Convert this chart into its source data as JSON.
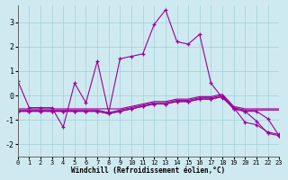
{
  "xlabel": "Windchill (Refroidissement éolien,°C)",
  "background_color": "#ceeaf0",
  "grid_color": "#a8d4dc",
  "line_color": "#990099",
  "xlim": [
    0,
    23
  ],
  "ylim": [
    -2.5,
    3.7
  ],
  "yticks": [
    -2,
    -1,
    0,
    1,
    2,
    3
  ],
  "xticks": [
    0,
    1,
    2,
    3,
    4,
    5,
    6,
    7,
    8,
    9,
    10,
    11,
    12,
    13,
    14,
    15,
    16,
    17,
    18,
    19,
    20,
    21,
    22,
    23
  ],
  "series": [
    [
      0.6,
      -0.5,
      -0.5,
      -0.5,
      -1.3,
      0.5,
      -0.3,
      1.4,
      -0.7,
      1.5,
      1.6,
      1.7,
      2.9,
      3.5,
      2.2,
      2.1,
      2.5,
      0.5,
      -0.1,
      -0.5,
      -1.1,
      -1.2,
      -1.5,
      -1.6
    ],
    [
      -0.55,
      -0.55,
      -0.55,
      -0.55,
      -0.55,
      -0.55,
      -0.55,
      -0.55,
      -0.55,
      -0.55,
      -0.45,
      -0.35,
      -0.25,
      -0.25,
      -0.15,
      -0.15,
      -0.05,
      -0.05,
      0.05,
      -0.45,
      -0.55,
      -0.55,
      -0.55,
      -0.55
    ],
    [
      -0.6,
      -0.6,
      -0.6,
      -0.6,
      -0.6,
      -0.6,
      -0.6,
      -0.6,
      -0.7,
      -0.6,
      -0.5,
      -0.4,
      -0.3,
      -0.3,
      -0.2,
      -0.2,
      -0.1,
      -0.1,
      0.0,
      -0.5,
      -0.6,
      -0.6,
      -0.6,
      -0.6
    ],
    [
      -0.65,
      -0.65,
      -0.65,
      -0.65,
      -0.65,
      -0.65,
      -0.65,
      -0.65,
      -0.75,
      -0.65,
      -0.55,
      -0.45,
      -0.35,
      -0.35,
      -0.25,
      -0.25,
      -0.15,
      -0.15,
      -0.05,
      -0.55,
      -0.65,
      -0.65,
      -0.95,
      -1.65
    ],
    [
      -0.65,
      -0.65,
      -0.65,
      -0.65,
      -0.65,
      -0.65,
      -0.65,
      -0.65,
      -0.75,
      -0.65,
      -0.55,
      -0.45,
      -0.35,
      -0.35,
      -0.25,
      -0.25,
      -0.15,
      -0.15,
      -0.05,
      -0.55,
      -0.65,
      -1.05,
      -1.55,
      -1.65
    ]
  ],
  "markers": [
    true,
    false,
    false,
    true,
    true
  ]
}
